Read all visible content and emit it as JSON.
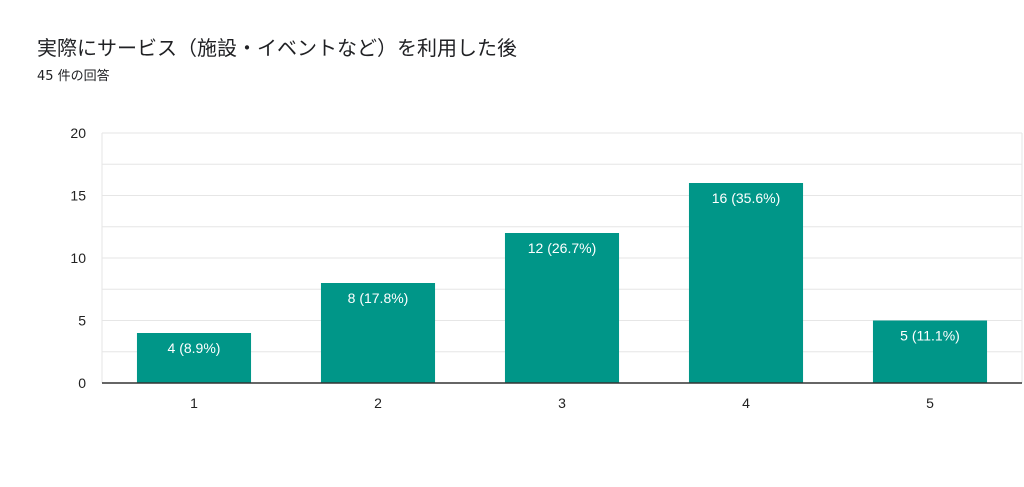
{
  "title": "実際にサービス（施設・イベントなど）を利用した後",
  "subtitle": "45 件の回答",
  "colors": {
    "bar": "#009688",
    "grid": "#e6e6e6",
    "axis": "#333333"
  },
  "chart_data": {
    "type": "bar",
    "categories": [
      "1",
      "2",
      "3",
      "4",
      "5"
    ],
    "values": [
      4,
      8,
      12,
      16,
      5
    ],
    "data_labels": [
      "4 (8.9%)",
      "8 (17.8%)",
      "12 (26.7%)",
      "16 (35.6%)",
      "5 (11.1%)"
    ],
    "y_ticks": [
      0,
      5,
      10,
      15,
      20
    ],
    "ylim": [
      0,
      20
    ],
    "grid": true,
    "legend": "none"
  }
}
